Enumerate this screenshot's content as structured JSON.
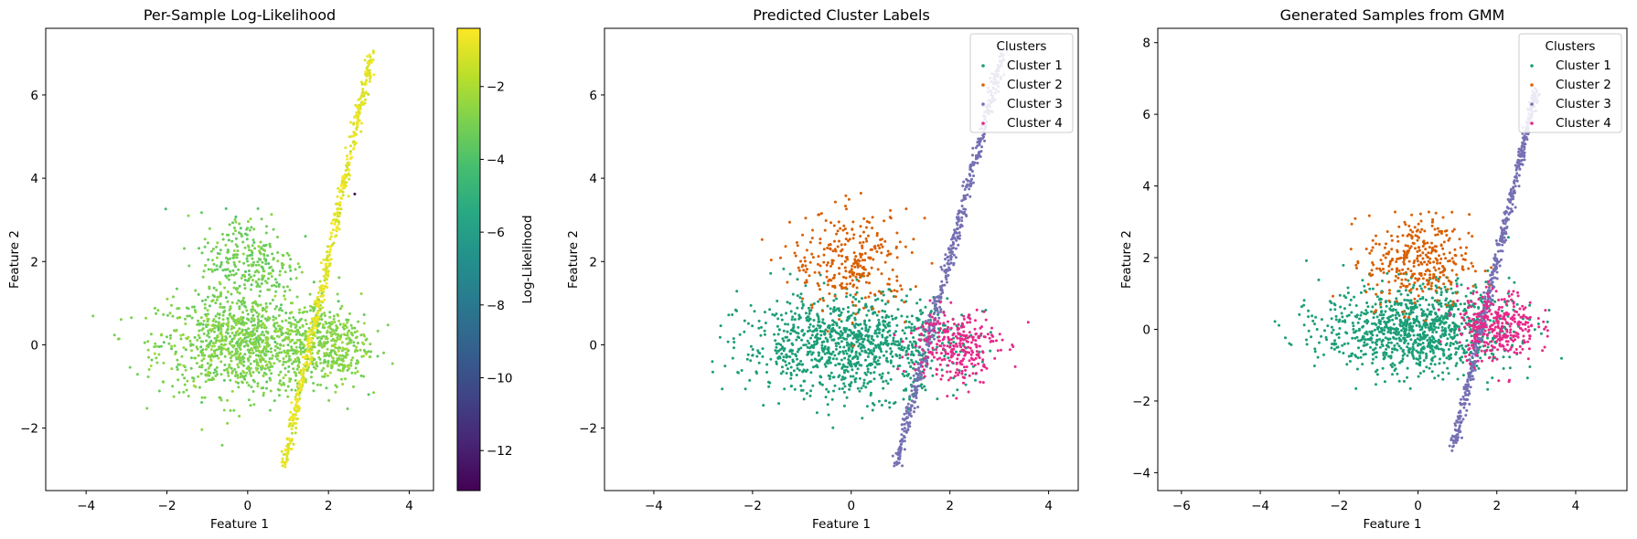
{
  "chart_data": [
    {
      "type": "scatter",
      "title": "Per-Sample Log-Likelihood",
      "xlabel": "Feature 1",
      "ylabel": "Feature 2",
      "xlim": [
        -5.0,
        4.6
      ],
      "ylim": [
        -3.5,
        7.6
      ],
      "xticks": [
        -4,
        -2,
        0,
        2,
        4
      ],
      "yticks": [
        -2,
        0,
        2,
        4,
        6
      ],
      "colorbar": {
        "label": "Log-Likelihood",
        "colormap": "viridis",
        "range": [
          -13.1,
          -0.4
        ],
        "ticks": [
          -12,
          -10,
          -8,
          -6,
          -4,
          -2
        ]
      },
      "point_groups": [
        {
          "shape": "blob",
          "center": [
            0.0,
            0.0
          ],
          "spread": [
            1.1,
            0.6
          ],
          "n": 1050,
          "value": -3.0
        },
        {
          "shape": "blob",
          "center": [
            0.0,
            2.0
          ],
          "spread": [
            0.6,
            0.6
          ],
          "n": 290,
          "value": -3.2
        },
        {
          "shape": "blob",
          "center": [
            2.1,
            0.0
          ],
          "spread": [
            0.45,
            0.45
          ],
          "n": 290,
          "value": -2.8
        },
        {
          "shape": "line",
          "from": [
            0.9,
            -2.9
          ],
          "to": [
            3.1,
            7.1
          ],
          "n": 520,
          "value": -1.0
        },
        {
          "shape": "point",
          "at": [
            2.65,
            3.62
          ],
          "n": 1,
          "value": -13.0
        }
      ]
    },
    {
      "type": "scatter",
      "title": "Predicted Cluster Labels",
      "xlabel": "Feature 1",
      "ylabel": "Feature 2",
      "xlim": [
        -5.0,
        4.6
      ],
      "ylim": [
        -3.5,
        7.6
      ],
      "xticks": [
        -4,
        -2,
        0,
        2,
        4
      ],
      "yticks": [
        -2,
        0,
        2,
        4,
        6
      ],
      "legend": {
        "title": "Clusters",
        "location": "upper right"
      },
      "series": [
        {
          "name": "Cluster 1",
          "color": "#1b9e77",
          "center": [
            0.0,
            0.0
          ],
          "spread": [
            1.1,
            0.6
          ],
          "n": 1050
        },
        {
          "name": "Cluster 2",
          "color": "#d95f02",
          "center": [
            0.0,
            2.0
          ],
          "spread": [
            0.6,
            0.6
          ],
          "n": 290
        },
        {
          "name": "Cluster 3",
          "color": "#7570b3",
          "from": [
            0.9,
            -2.9
          ],
          "to": [
            3.1,
            7.1
          ],
          "n": 520
        },
        {
          "name": "Cluster 4",
          "color": "#e7298a",
          "center": [
            2.1,
            0.0
          ],
          "spread": [
            0.45,
            0.45
          ],
          "n": 290
        }
      ]
    },
    {
      "type": "scatter",
      "title": "Generated Samples from GMM",
      "xlabel": "Feature 1",
      "ylabel": "Feature 2",
      "xlim": [
        -6.6,
        5.3
      ],
      "ylim": [
        -4.5,
        8.4
      ],
      "xticks": [
        -6,
        -4,
        -2,
        0,
        2,
        4
      ],
      "yticks": [
        -4,
        -2,
        0,
        2,
        4,
        6,
        8
      ],
      "legend": {
        "title": "Clusters",
        "location": "upper right"
      },
      "series": [
        {
          "name": "Cluster 1",
          "color": "#1b9e77",
          "center": [
            0.0,
            0.0
          ],
          "spread": [
            1.2,
            0.6
          ],
          "n": 1050
        },
        {
          "name": "Cluster 2",
          "color": "#d95f02",
          "center": [
            0.0,
            1.9
          ],
          "spread": [
            0.65,
            0.65
          ],
          "n": 330
        },
        {
          "name": "Cluster 3",
          "color": "#7570b3",
          "from": [
            0.9,
            -3.3
          ],
          "to": [
            3.0,
            6.7
          ],
          "n": 520
        },
        {
          "name": "Cluster 4",
          "color": "#e7298a",
          "center": [
            2.0,
            0.1
          ],
          "spread": [
            0.5,
            0.5
          ],
          "n": 330
        }
      ]
    }
  ]
}
